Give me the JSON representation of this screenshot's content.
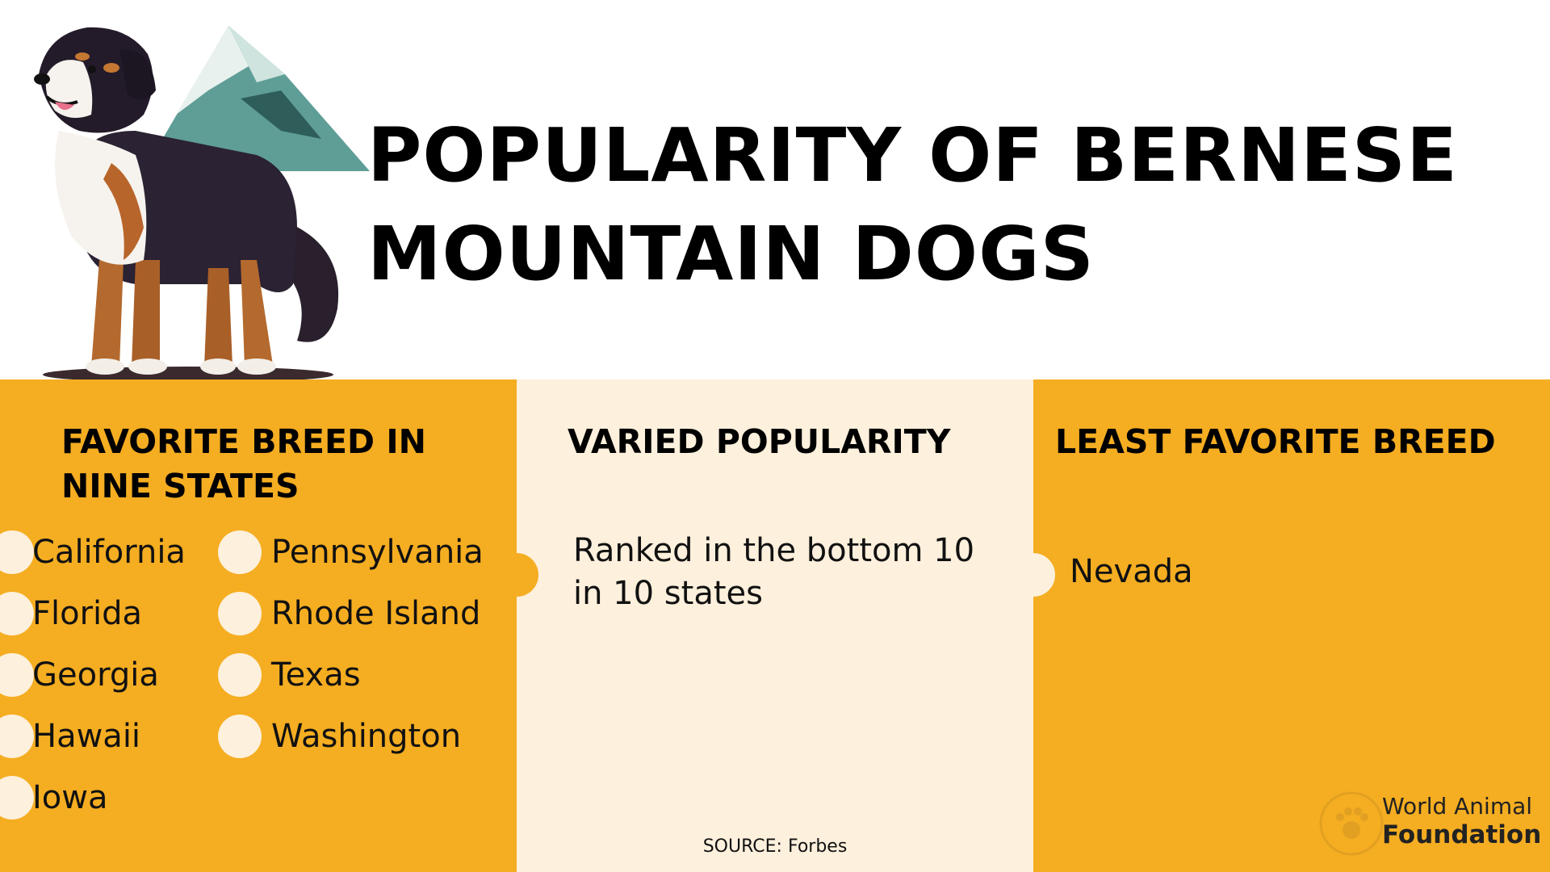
{
  "title": {
    "line1": "POPULARITY OF BERNESE",
    "line2": "MOUNTAIN DOGS"
  },
  "panels": {
    "favorite": {
      "heading": "FAVORITE BREED IN NINE STATES",
      "states_col1": [
        "California",
        "Florida",
        "Georgia",
        "Hawaii",
        "Iowa"
      ],
      "states_col2": [
        "Pennsylvania",
        "Rhode Island",
        "Texas",
        "Washington"
      ]
    },
    "varied": {
      "heading": "VARIED POPULARITY",
      "text": "Ranked in the bottom 10 in 10 states"
    },
    "least": {
      "heading": "LEAST FAVORITE BREED",
      "text": "Nevada"
    }
  },
  "source": "SOURCE: Forbes",
  "brand": {
    "line1": "World Animal",
    "line2": "Foundation"
  },
  "illustration": {
    "icon": "bernese-mountain-dog-with-mountain-icon"
  },
  "colors": {
    "accent_orange": "#f5ad21",
    "cream": "#fdf0dc",
    "text": "#111111"
  }
}
